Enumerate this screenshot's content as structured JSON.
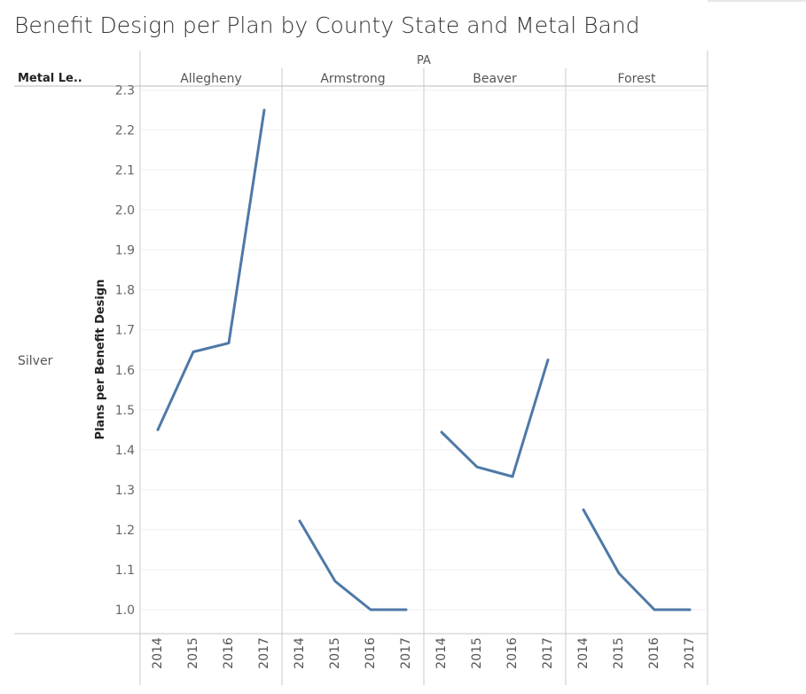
{
  "title": "Benefit Design per Plan by County State and Metal Band",
  "chart_data": {
    "type": "line",
    "row_header_label": "Metal Le..",
    "row_label": "Silver",
    "state": "PA",
    "ylabel": "Plans per Benefit Design",
    "ylim": [
      0.94,
      2.31
    ],
    "yticks": [
      "1.0",
      "1.1",
      "1.2",
      "1.3",
      "1.4",
      "1.5",
      "1.6",
      "1.7",
      "1.8",
      "1.9",
      "2.0",
      "2.1",
      "2.2",
      "2.3"
    ],
    "x": [
      "2014",
      "2015",
      "2016",
      "2017"
    ],
    "grid": true,
    "line_color": "#4e79a7",
    "panels": [
      {
        "county": "Allegheny",
        "values": [
          1.45,
          1.645,
          1.667,
          2.25
        ]
      },
      {
        "county": "Armstrong",
        "values": [
          1.222,
          1.071,
          1.0,
          1.0
        ]
      },
      {
        "county": "Beaver",
        "values": [
          1.444,
          1.357,
          1.333,
          1.625
        ]
      },
      {
        "county": "Forest",
        "values": [
          1.25,
          1.091,
          1.0,
          1.0
        ]
      }
    ]
  }
}
